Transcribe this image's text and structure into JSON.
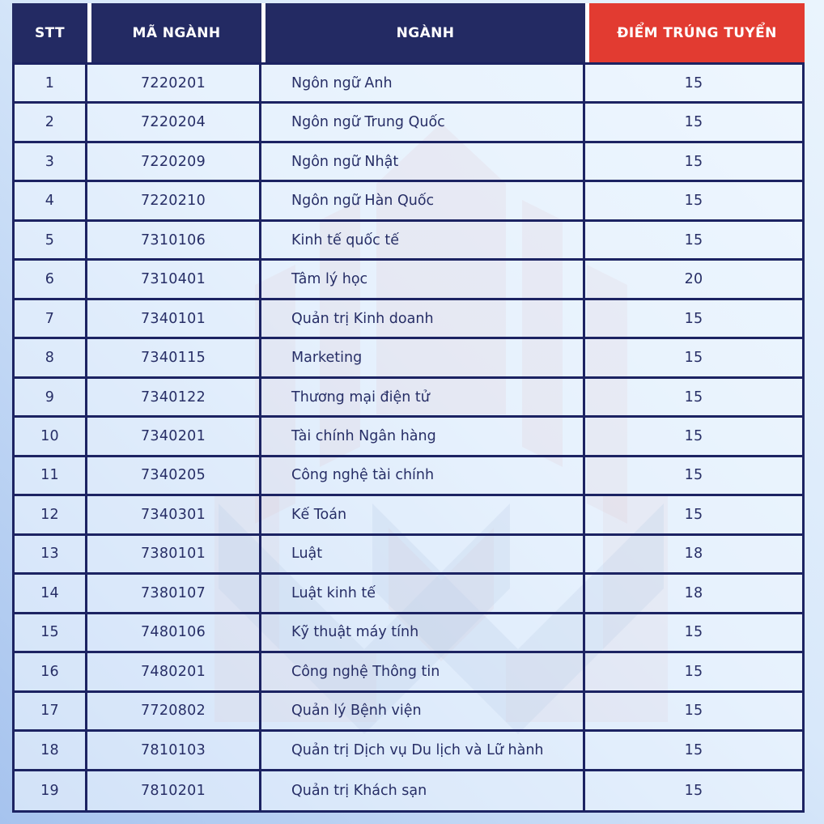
{
  "chart_data": {
    "type": "table",
    "title": "",
    "columns": [
      "STT",
      "MÃ NGÀNH",
      "NGÀNH",
      "ĐIỂM TRÚNG TUYỂN"
    ],
    "rows": [
      [
        "1",
        "7220201",
        "Ngôn ngữ Anh",
        "15"
      ],
      [
        "2",
        "7220204",
        "Ngôn ngữ Trung Quốc",
        "15"
      ],
      [
        "3",
        "7220209",
        "Ngôn ngữ Nhật",
        "15"
      ],
      [
        "4",
        "7220210",
        "Ngôn ngữ Hàn Quốc",
        "15"
      ],
      [
        "5",
        "7310106",
        "Kinh tế quốc tế",
        "15"
      ],
      [
        "6",
        "7310401",
        "Tâm lý học",
        "20"
      ],
      [
        "7",
        "7340101",
        "Quản trị Kinh doanh",
        "15"
      ],
      [
        "8",
        "7340115",
        "Marketing",
        "15"
      ],
      [
        "9",
        "7340122",
        "Thương mại điện tử",
        "15"
      ],
      [
        "10",
        "7340201",
        "Tài chính Ngân hàng",
        "15"
      ],
      [
        "11",
        "7340205",
        "Công nghệ tài chính",
        "15"
      ],
      [
        "12",
        "7340301",
        "Kế Toán",
        "15"
      ],
      [
        "13",
        "7380101",
        "Luật",
        "18"
      ],
      [
        "14",
        "7380107",
        "Luật kinh tế",
        "18"
      ],
      [
        "15",
        "7480106",
        "Kỹ thuật máy tính",
        "15"
      ],
      [
        "16",
        "7480201",
        "Công nghệ Thông tin",
        "15"
      ],
      [
        "17",
        "7720802",
        "Quản lý Bệnh viện",
        "15"
      ],
      [
        "18",
        "7810103",
        "Quản trị Dịch vụ Du lịch và Lữ hành",
        "15"
      ],
      [
        "19",
        "7810201",
        "Quản trị Khách sạn",
        "15"
      ]
    ]
  },
  "colors": {
    "header_bg": "#232a63",
    "score_header_bg": "#e23b31",
    "header_text": "#ffffff",
    "body_text": "#272e66",
    "border": "#1c2362",
    "watermark_pink": "#c4666d",
    "watermark_blue": "#7d9bc9"
  },
  "watermark": {
    "icon": "university-emblem-watermark"
  }
}
